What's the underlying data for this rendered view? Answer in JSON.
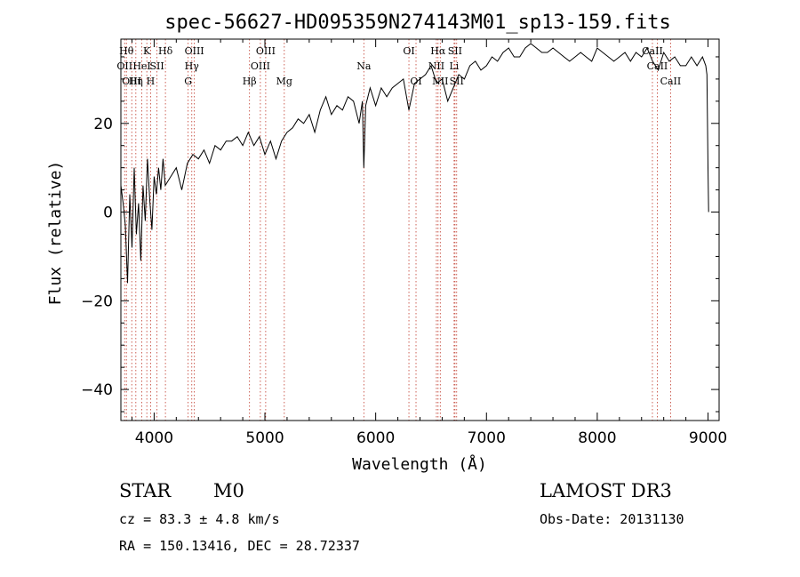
{
  "chart_data": {
    "type": "line",
    "title": "spec-56627-HD095359N274143M01_sp13-159.fits",
    "xlabel": "Wavelength (Å)",
    "ylabel": "Flux (relative)",
    "xlim": [
      3700,
      9100
    ],
    "ylim": [
      -47,
      39
    ],
    "x_ticks": [
      4000,
      5000,
      6000,
      7000,
      8000,
      9000
    ],
    "y_ticks": [
      -40,
      -20,
      0,
      20
    ],
    "x_tick_labels": [
      "4000",
      "5000",
      "6000",
      "7000",
      "8000",
      "9000"
    ],
    "y_tick_labels": [
      "−40",
      "−20",
      "0",
      "20"
    ],
    "series": [
      {
        "name": "spectrum",
        "x": [
          3700,
          3720,
          3740,
          3760,
          3780,
          3800,
          3820,
          3840,
          3860,
          3880,
          3900,
          3920,
          3940,
          3960,
          3980,
          4000,
          4020,
          4040,
          4060,
          4080,
          4100,
          4150,
          4200,
          4250,
          4300,
          4350,
          4400,
          4450,
          4500,
          4550,
          4600,
          4650,
          4700,
          4750,
          4800,
          4850,
          4900,
          4950,
          5000,
          5050,
          5100,
          5150,
          5200,
          5250,
          5300,
          5350,
          5400,
          5450,
          5500,
          5550,
          5600,
          5650,
          5700,
          5750,
          5800,
          5850,
          5880,
          5893,
          5910,
          5950,
          6000,
          6050,
          6100,
          6150,
          6200,
          6250,
          6300,
          6350,
          6400,
          6450,
          6500,
          6550,
          6600,
          6650,
          6700,
          6750,
          6800,
          6850,
          6900,
          6950,
          7000,
          7050,
          7100,
          7150,
          7200,
          7250,
          7300,
          7350,
          7400,
          7450,
          7500,
          7550,
          7600,
          7650,
          7700,
          7750,
          7800,
          7850,
          7900,
          7950,
          8000,
          8050,
          8100,
          8150,
          8200,
          8250,
          8300,
          8350,
          8400,
          8450,
          8500,
          8550,
          8600,
          8650,
          8700,
          8750,
          8800,
          8850,
          8900,
          8950,
          8980,
          8990,
          9000,
          9005
        ],
        "y": [
          6,
          2,
          -3,
          -16,
          4,
          -8,
          10,
          -5,
          2,
          -11,
          6,
          -2,
          12,
          3,
          -4,
          8,
          4,
          10,
          5,
          12,
          6,
          8,
          10,
          5,
          11,
          13,
          12,
          14,
          11,
          15,
          14,
          16,
          16,
          17,
          15,
          18,
          15,
          17,
          13,
          16,
          12,
          16,
          18,
          19,
          21,
          20,
          22,
          18,
          23,
          26,
          22,
          24,
          23,
          26,
          25,
          20,
          25,
          10,
          24,
          28,
          24,
          28,
          26,
          28,
          29,
          30,
          23,
          29,
          30,
          31,
          33,
          29,
          30,
          25,
          28,
          31,
          30,
          33,
          34,
          32,
          33,
          35,
          34,
          36,
          37,
          35,
          35,
          37,
          38,
          37,
          36,
          36,
          37,
          36,
          35,
          34,
          35,
          36,
          35,
          34,
          37,
          36,
          35,
          34,
          35,
          36,
          34,
          36,
          35,
          37,
          34,
          32,
          36,
          34,
          35,
          33,
          33,
          35,
          33,
          35,
          33,
          31,
          10,
          0
        ]
      }
    ],
    "lines": [
      {
        "x": 3734,
        "label": "OII",
        "row": 2
      },
      {
        "x": 3750,
        "label": "Hθ",
        "row": 1
      },
      {
        "x": 3798,
        "label": "OIII",
        "row": 3
      },
      {
        "x": 3835,
        "label": "Hη",
        "row": 3
      },
      {
        "x": 3889,
        "label": "HeI",
        "row": 2
      },
      {
        "x": 3934,
        "label": "K",
        "row": 1
      },
      {
        "x": 3968,
        "label": "H",
        "row": 3
      },
      {
        "x": 4026,
        "label": "SII",
        "row": 2
      },
      {
        "x": 4102,
        "label": "Hδ",
        "row": 1
      },
      {
        "x": 4307,
        "label": "G",
        "row": 3
      },
      {
        "x": 4340,
        "label": "Hγ",
        "row": 2
      },
      {
        "x": 4363,
        "label": "OIII",
        "row": 1
      },
      {
        "x": 4861,
        "label": "Hβ",
        "row": 3
      },
      {
        "x": 4959,
        "label": "OIII",
        "row": 2
      },
      {
        "x": 5007,
        "label": "OIII",
        "row": 1
      },
      {
        "x": 5175,
        "label": "Mg",
        "row": 3
      },
      {
        "x": 5893,
        "label": "Na",
        "row": 2
      },
      {
        "x": 6300,
        "label": "OI",
        "row": 1
      },
      {
        "x": 6364,
        "label": "OI",
        "row": 3
      },
      {
        "x": 6548,
        "label": "NII",
        "row": 2
      },
      {
        "x": 6563,
        "label": "Hα",
        "row": 1
      },
      {
        "x": 6583,
        "label": "NII",
        "row": 3
      },
      {
        "x": 6708,
        "label": "Li",
        "row": 2
      },
      {
        "x": 6716,
        "label": "SII",
        "row": 1
      },
      {
        "x": 6731,
        "label": "SII",
        "row": 3
      },
      {
        "x": 8498,
        "label": "CaII",
        "row": 1
      },
      {
        "x": 8542,
        "label": "CaII",
        "row": 2
      },
      {
        "x": 8662,
        "label": "CaII",
        "row": 3
      }
    ]
  },
  "info": {
    "object_class": "STAR",
    "subclass": "M0",
    "survey": "LAMOST DR3",
    "redshift": "cz = 83.3 ± 4.8 km/s",
    "obs_date": "Obs-Date: 20131130",
    "coords": "RA = 150.13416, DEC =  28.72337"
  }
}
